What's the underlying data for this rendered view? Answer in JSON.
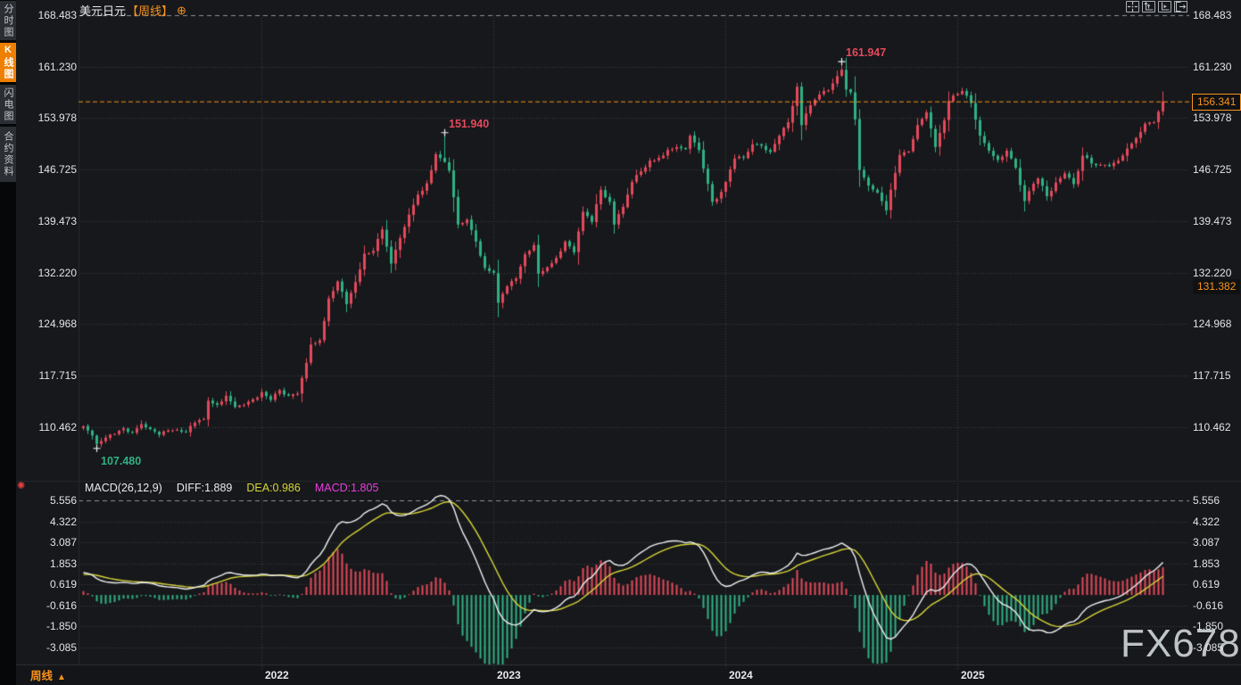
{
  "window": {
    "title_symbol": "美元日元",
    "title_period": "【周线】",
    "add_icon": "⊕"
  },
  "sidebar": {
    "tabs": [
      {
        "label": "分时图",
        "active": false
      },
      {
        "label": "K线图",
        "active": true
      },
      {
        "label": "闪电图",
        "active": false
      },
      {
        "label": "合约资料",
        "active": false
      }
    ]
  },
  "toolbar": {
    "buttons": [
      {
        "icon": "crosshair"
      },
      {
        "icon": "axis-zoom"
      },
      {
        "icon": "axis-pan"
      },
      {
        "icon": "exit-chart"
      }
    ]
  },
  "indicator_row": {
    "params": "MACD(26,12,9)",
    "diff": "DIFF:1.889",
    "dea": "DEA:0.986",
    "macd": "MACD:1.805"
  },
  "price_tags": {
    "current": "156.341",
    "secondary": "131.382"
  },
  "bottom_bar": {
    "timeframe": "周线",
    "arrow": "▲",
    "years": [
      "2022",
      "2023",
      "2024",
      "2025"
    ]
  },
  "watermark": "FX678",
  "indicator_flag_icon": "✺",
  "chart_data": {
    "type": "candlestick+macd",
    "symbol": "美元日元 (USD/JPY)",
    "period": "weekly",
    "title": "美元日元【周线】",
    "price_axis_labels": [
      "168.483",
      "161.230",
      "153.978",
      "146.725",
      "139.473",
      "132.220",
      "124.968",
      "117.715",
      "110.462"
    ],
    "macd_axis_labels": [
      "5.556",
      "4.322",
      "3.087",
      "1.853",
      "0.619",
      "-0.616",
      "-1.850",
      "-3.085"
    ],
    "current_price": 156.341,
    "secondary_price": 131.382,
    "macd_current": {
      "diff": 1.889,
      "dea": 0.986,
      "hist": 1.805
    },
    "macd_params": [
      26,
      12,
      9
    ],
    "markers": [
      {
        "label": "161.947",
        "week": 170,
        "price": 161.947,
        "dir": "high",
        "color": "#e4495b"
      },
      {
        "label": "151.940",
        "week": 81,
        "price": 151.94,
        "dir": "high",
        "color": "#e4495b"
      },
      {
        "label": "107.480",
        "week": 3,
        "price": 107.48,
        "dir": "low",
        "color": "#30b183"
      }
    ],
    "year_gridline_weeks": [
      40,
      92,
      144,
      196
    ],
    "weeks_total": 243,
    "close_anchors": [
      [
        0,
        110.6
      ],
      [
        2,
        109.3
      ],
      [
        3,
        108.1
      ],
      [
        5,
        109.0
      ],
      [
        7,
        109.5
      ],
      [
        9,
        110.3
      ],
      [
        11,
        109.7
      ],
      [
        13,
        110.9
      ],
      [
        15,
        110.2
      ],
      [
        17,
        109.4
      ],
      [
        19,
        110.0
      ],
      [
        21,
        110.1
      ],
      [
        23,
        109.8
      ],
      [
        25,
        111.1
      ],
      [
        27,
        111.6
      ],
      [
        28,
        114.2
      ],
      [
        30,
        113.6
      ],
      [
        32,
        114.9
      ],
      [
        34,
        113.3
      ],
      [
        36,
        113.6
      ],
      [
        38,
        114.4
      ],
      [
        40,
        115.4
      ],
      [
        42,
        114.3
      ],
      [
        44,
        115.7
      ],
      [
        46,
        114.9
      ],
      [
        48,
        115.2
      ],
      [
        49,
        117.4
      ],
      [
        51,
        122.1
      ],
      [
        53,
        122.7
      ],
      [
        55,
        128.6
      ],
      [
        57,
        131.0
      ],
      [
        59,
        127.8
      ],
      [
        61,
        130.9
      ],
      [
        63,
        134.9
      ],
      [
        65,
        135.3
      ],
      [
        67,
        138.3
      ],
      [
        69,
        133.5
      ],
      [
        71,
        137.1
      ],
      [
        73,
        140.4
      ],
      [
        75,
        143.2
      ],
      [
        77,
        144.8
      ],
      [
        79,
        148.9
      ],
      [
        81,
        147.8
      ],
      [
        82,
        146.6
      ],
      [
        84,
        139.0
      ],
      [
        86,
        139.7
      ],
      [
        88,
        136.6
      ],
      [
        90,
        132.9
      ],
      [
        92,
        132.2
      ],
      [
        93,
        128.0
      ],
      [
        95,
        130.3
      ],
      [
        97,
        131.4
      ],
      [
        99,
        134.8
      ],
      [
        101,
        136.1
      ],
      [
        102,
        132.1
      ],
      [
        104,
        133.0
      ],
      [
        106,
        134.3
      ],
      [
        108,
        136.6
      ],
      [
        110,
        135.1
      ],
      [
        112,
        140.8
      ],
      [
        114,
        139.4
      ],
      [
        116,
        143.9
      ],
      [
        118,
        142.2
      ],
      [
        119,
        139.0
      ],
      [
        121,
        141.5
      ],
      [
        123,
        145.0
      ],
      [
        125,
        146.5
      ],
      [
        127,
        148.0
      ],
      [
        129,
        148.4
      ],
      [
        131,
        149.5
      ],
      [
        133,
        149.9
      ],
      [
        135,
        149.6
      ],
      [
        136,
        151.5
      ],
      [
        138,
        149.5
      ],
      [
        139,
        146.9
      ],
      [
        141,
        142.2
      ],
      [
        142,
        142.6
      ],
      [
        144,
        145.0
      ],
      [
        146,
        148.3
      ],
      [
        148,
        148.4
      ],
      [
        150,
        150.3
      ],
      [
        152,
        150.1
      ],
      [
        154,
        149.2
      ],
      [
        156,
        151.5
      ],
      [
        158,
        153.4
      ],
      [
        160,
        158.4
      ],
      [
        161,
        153.0
      ],
      [
        163,
        155.8
      ],
      [
        165,
        157.3
      ],
      [
        167,
        157.9
      ],
      [
        169,
        159.9
      ],
      [
        170,
        160.8
      ],
      [
        171,
        158.0
      ],
      [
        172,
        157.6
      ],
      [
        173,
        153.8
      ],
      [
        174,
        146.7
      ],
      [
        176,
        144.5
      ],
      [
        178,
        143.5
      ],
      [
        180,
        141.0
      ],
      [
        181,
        143.9
      ],
      [
        183,
        148.8
      ],
      [
        185,
        149.3
      ],
      [
        187,
        153.0
      ],
      [
        189,
        154.8
      ],
      [
        191,
        149.9
      ],
      [
        193,
        153.7
      ],
      [
        194,
        156.4
      ],
      [
        196,
        157.4
      ],
      [
        197,
        157.8
      ],
      [
        199,
        156.1
      ],
      [
        201,
        151.5
      ],
      [
        203,
        149.4
      ],
      [
        205,
        148.1
      ],
      [
        207,
        149.4
      ],
      [
        209,
        147.0
      ],
      [
        211,
        142.3
      ],
      [
        212,
        143.7
      ],
      [
        214,
        145.5
      ],
      [
        216,
        143.0
      ],
      [
        218,
        144.9
      ],
      [
        220,
        146.2
      ],
      [
        222,
        144.7
      ],
      [
        224,
        148.7
      ],
      [
        226,
        147.6
      ],
      [
        228,
        147.4
      ],
      [
        230,
        147.2
      ],
      [
        232,
        148.0
      ],
      [
        234,
        149.7
      ],
      [
        236,
        151.2
      ],
      [
        238,
        153.2
      ],
      [
        240,
        153.4
      ],
      [
        241,
        154.9
      ],
      [
        242,
        156.341
      ]
    ],
    "candle_overrides": {
      "3": {
        "low": 107.48
      },
      "81": {
        "high": 151.94
      },
      "170": {
        "high": 161.947
      },
      "242": {
        "high": 157.75
      }
    },
    "warmup": {
      "weeks": 30,
      "start_close": 103.8
    },
    "colors": {
      "up": "#e4495b",
      "down": "#30b183",
      "diff_line": "#eef0f2",
      "dea_line": "#d6d43a",
      "macd_value_label": "#ea3fe0",
      "accent_orange": "#f8921c",
      "grid_dot": "#3c4046",
      "grid_dash": "#8d929a",
      "bg": "#16181b",
      "axis_text": "#e1e3e6"
    }
  }
}
